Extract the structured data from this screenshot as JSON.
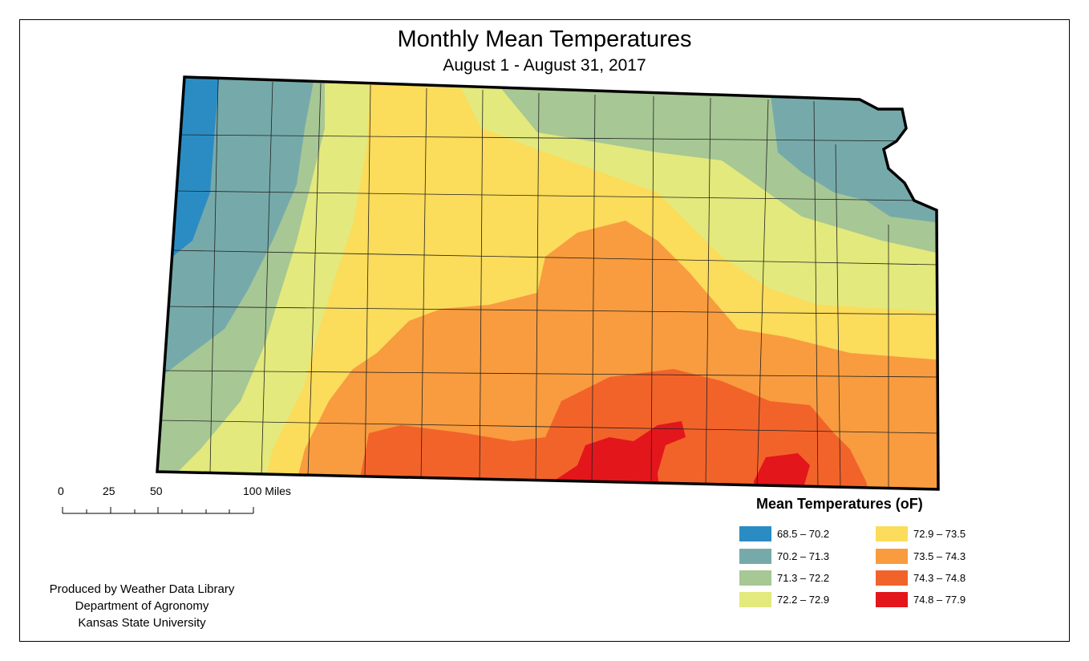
{
  "title": "Monthly Mean Temperatures",
  "subtitle": "August 1 - August 31, 2017",
  "scale_bar": {
    "labels": [
      "0",
      "25",
      "50",
      "100 Miles"
    ]
  },
  "credits": {
    "line1": "Produced by Weather Data Library",
    "line2": "Department of Agronomy",
    "line3": "Kansas State University"
  },
  "legend": {
    "title": "Mean Temperatures (oF)",
    "classes": [
      {
        "range": "68.5 – 70.2",
        "color": "#2b8cc4"
      },
      {
        "range": "70.2 – 71.3",
        "color": "#76aaaa"
      },
      {
        "range": "71.3 – 72.2",
        "color": "#a7c795"
      },
      {
        "range": "72.2 – 72.9",
        "color": "#e3e97c"
      },
      {
        "range": "72.9 – 73.5",
        "color": "#fbdc5b"
      },
      {
        "range": "73.5 – 74.3",
        "color": "#f89c3f"
      },
      {
        "range": "74.3 – 74.8",
        "color": "#f2632a"
      },
      {
        "range": "74.8 – 77.9",
        "color": "#e3161c"
      }
    ]
  }
}
